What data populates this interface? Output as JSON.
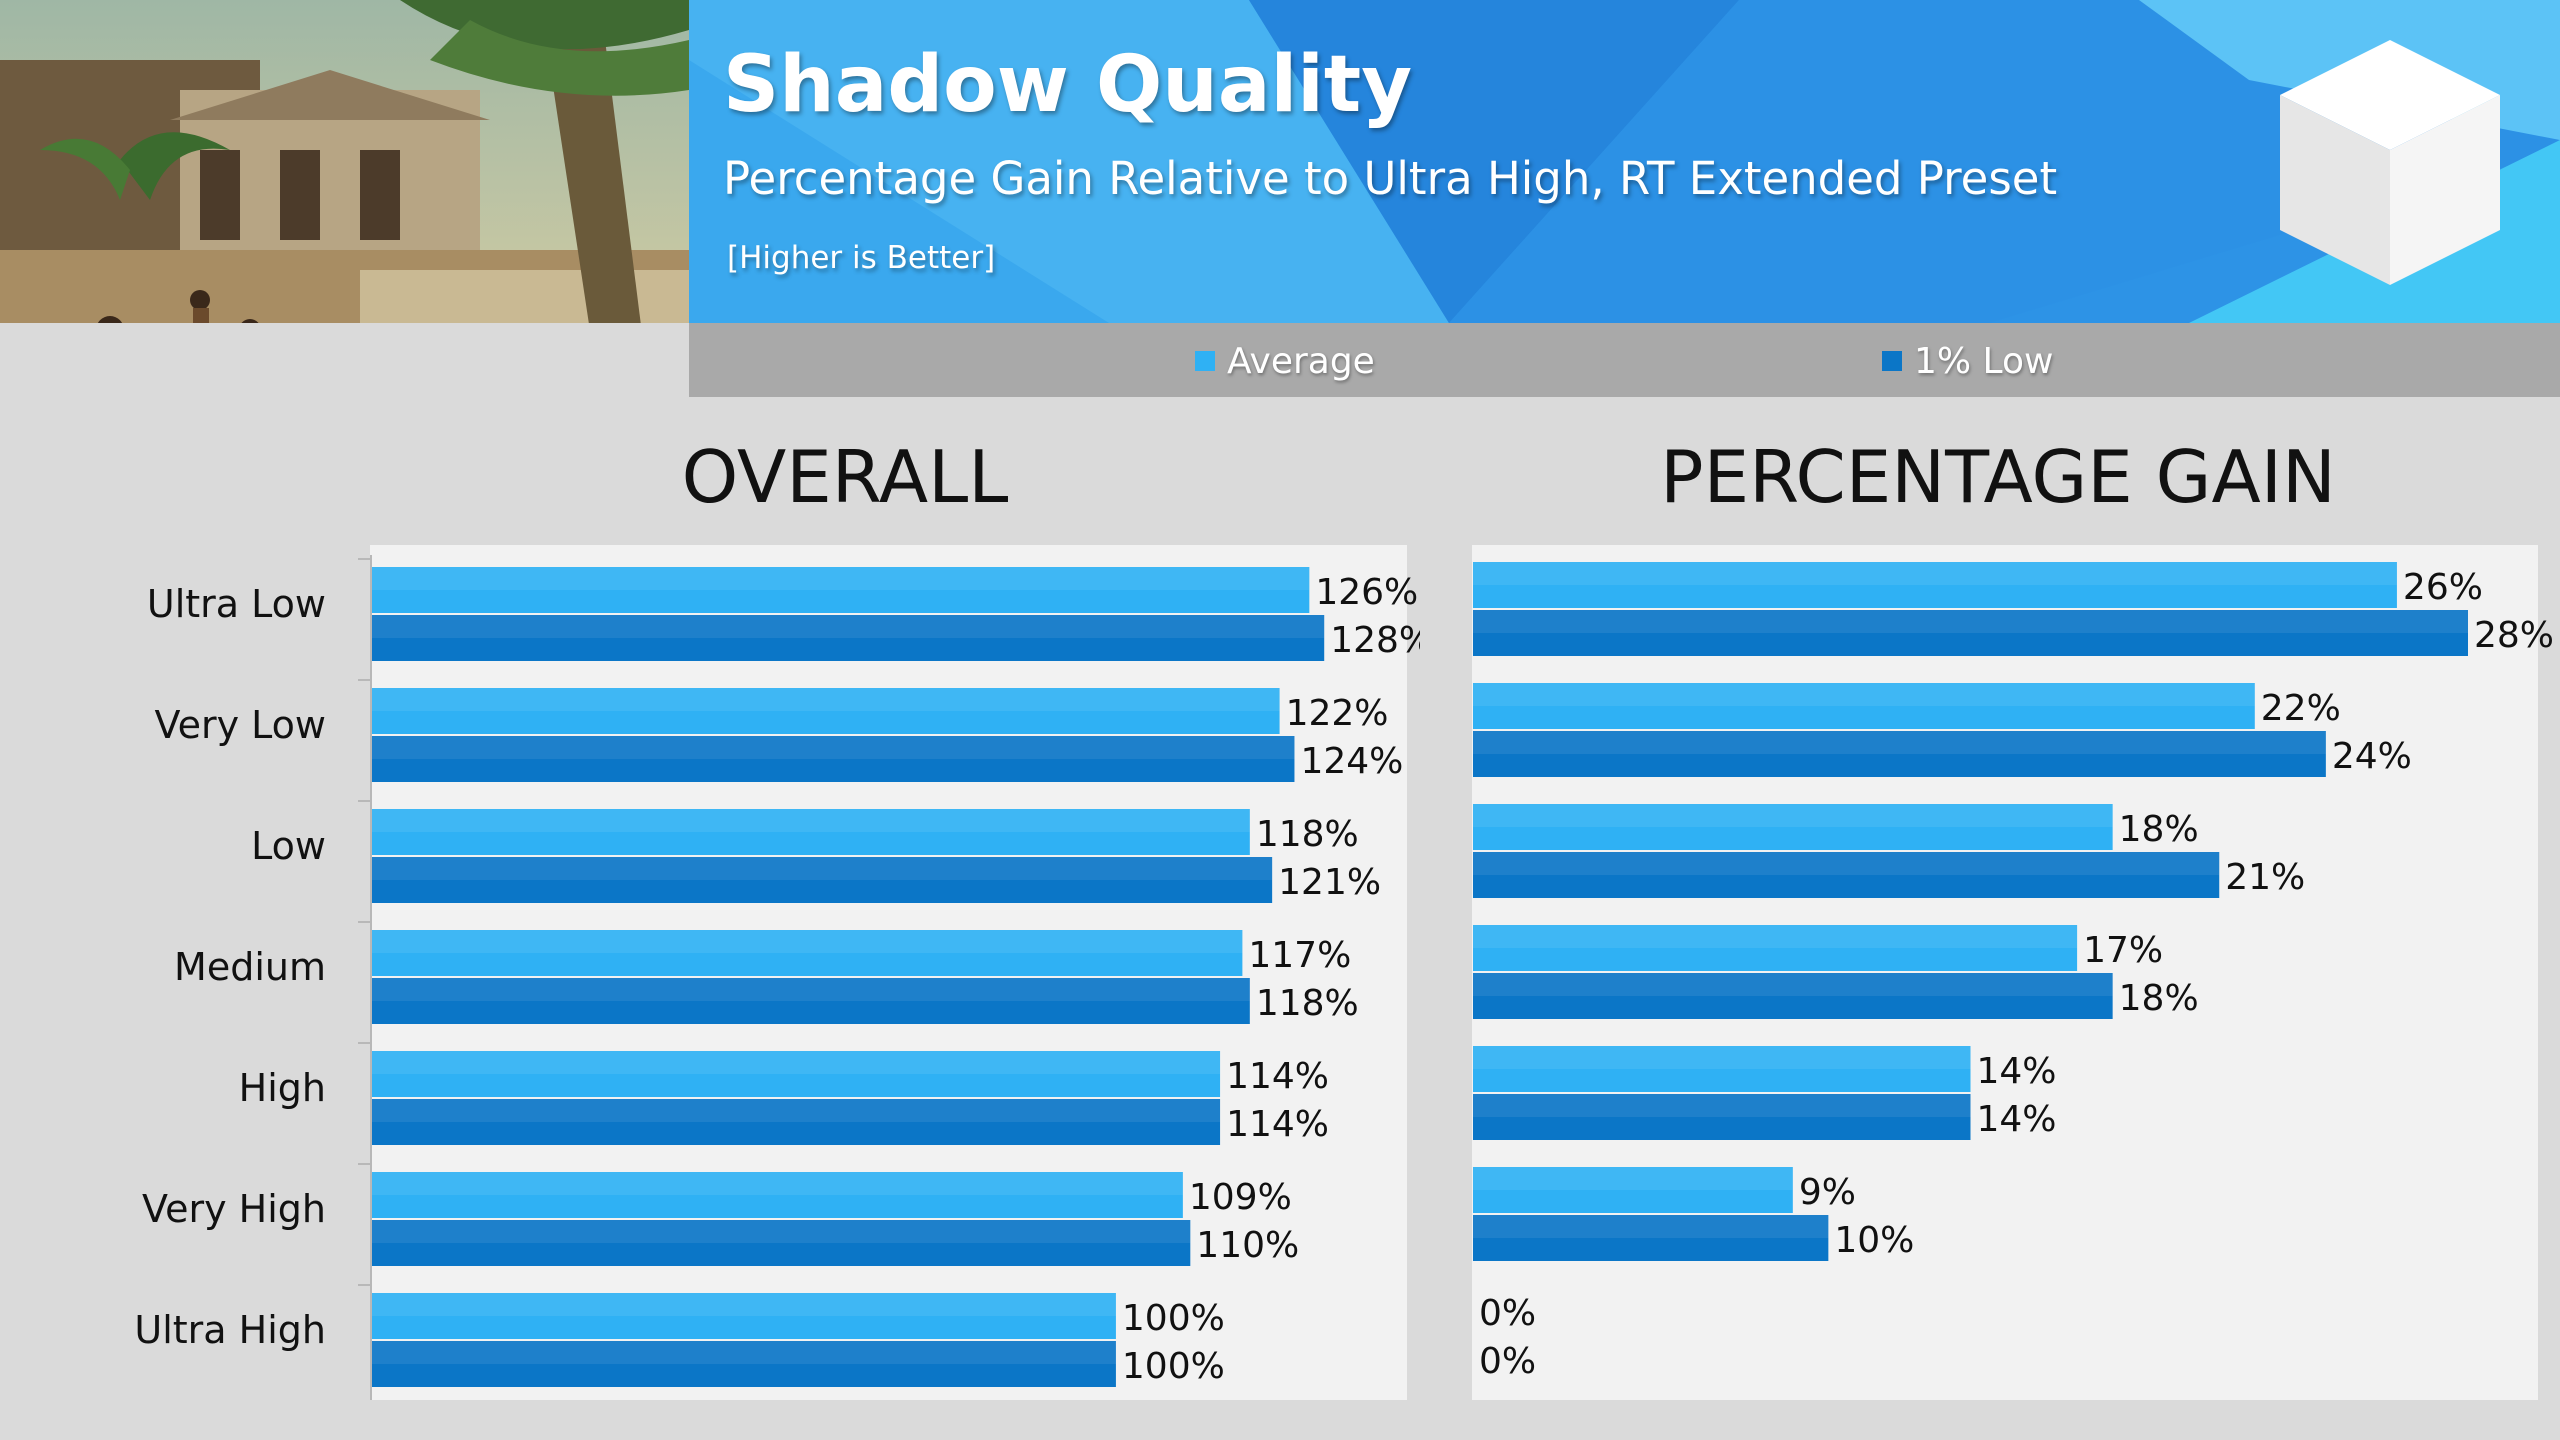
{
  "header": {
    "title": "Shadow Quality",
    "subtitle": "Percentage Gain Relative to Ultra High, RT Extended Preset",
    "note": "[Higher is Better]"
  },
  "colors": {
    "average": "#2fb1f4",
    "one_percent_low": "#0b76c7",
    "banner": "#2d93e6",
    "panel_bg": "#f2f2f2"
  },
  "legend": {
    "average": "Average",
    "one_percent_low": "1% Low"
  },
  "chart_data": [
    {
      "type": "bar",
      "orientation": "horizontal",
      "title": "OVERALL",
      "categories": [
        "Ultra Low",
        "Very Low",
        "Low",
        "Medium",
        "High",
        "Very High",
        "Ultra High"
      ],
      "series": [
        {
          "name": "Average",
          "values": [
            126,
            122,
            118,
            117,
            114,
            109,
            100
          ],
          "labels": [
            "126%",
            "122%",
            "118%",
            "117%",
            "114%",
            "109%",
            "100%"
          ]
        },
        {
          "name": "1% Low",
          "values": [
            128,
            124,
            121,
            118,
            114,
            110,
            100
          ],
          "labels": [
            "128%",
            "124%",
            "121%",
            "118%",
            "114%",
            "110%",
            "100%"
          ]
        }
      ],
      "xlim": [
        0,
        148
      ],
      "grid": false,
      "legend": "top"
    },
    {
      "type": "bar",
      "orientation": "horizontal",
      "title": "PERCENTAGE GAIN",
      "categories": [
        "Ultra Low",
        "Very Low",
        "Low",
        "Medium",
        "High",
        "Very High",
        "Ultra High"
      ],
      "series": [
        {
          "name": "Average",
          "values": [
            26,
            22,
            18,
            17,
            14,
            9,
            0
          ],
          "labels": [
            "26%",
            "22%",
            "18%",
            "17%",
            "14%",
            "9%",
            "0%"
          ]
        },
        {
          "name": "1% Low",
          "values": [
            28,
            24,
            21,
            18,
            14,
            10,
            0
          ],
          "labels": [
            "28%",
            "24%",
            "21%",
            "18%",
            "14%",
            "10%",
            "0%"
          ]
        }
      ],
      "xlim": [
        0,
        28
      ],
      "grid": false,
      "legend": "top"
    }
  ]
}
